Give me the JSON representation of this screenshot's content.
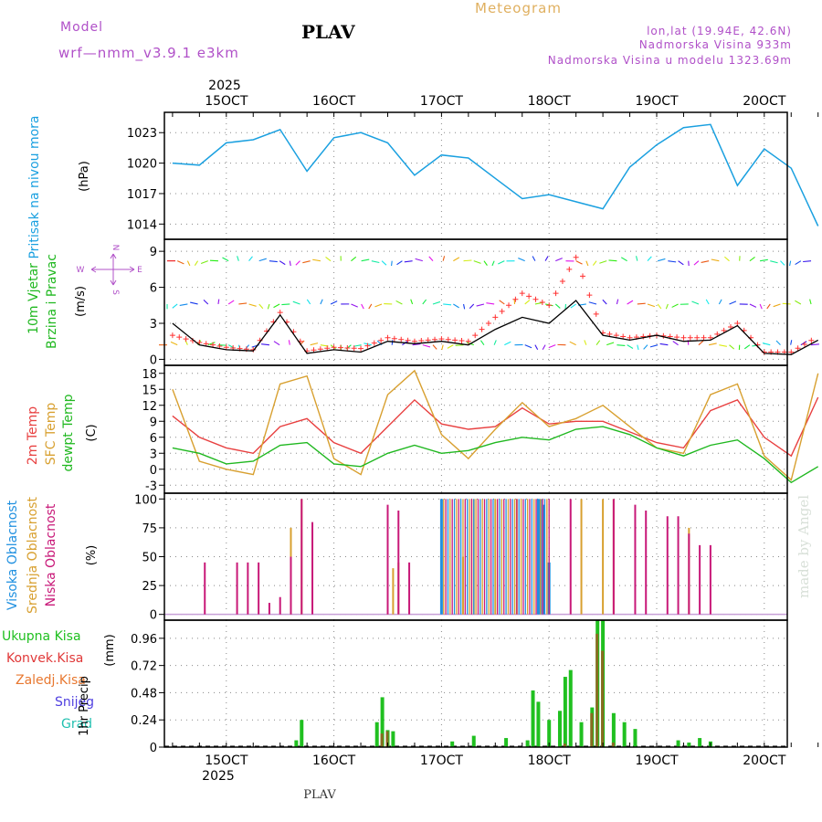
{
  "header": {
    "model_label": "Model",
    "model_name": "wrf—nmm_v3.9.1 e3km",
    "station": "PLAV",
    "title": "Meteogram",
    "lonlat": "lon,lat (19.94E, 42.6N)",
    "elevation": "Nadmorska Visina 933m",
    "model_elevation": "Nadmorska Visina u modelu 1323.69m",
    "watermark": "made by Angel",
    "footer_station": "PLAV"
  },
  "colors": {
    "pressure": "#1aa0e0",
    "wind_speed": "#000000",
    "gust": "#ff3030",
    "t2m": "#e84040",
    "sfc": "#d8a030",
    "dew": "#20b820",
    "high_cloud": "#2090e0",
    "mid_cloud": "#d8a030",
    "low_cloud": "#c81878",
    "total_precip": "#20c020",
    "conv_precip": "#e03838",
    "frozen_precip": "#e87830",
    "snow": "#5040e0",
    "graupel": "#20c0b0"
  },
  "time_axis": {
    "year": "2025",
    "dates": [
      "15OCT",
      "16OCT",
      "17OCT",
      "18OCT",
      "19OCT",
      "20OCT"
    ]
  },
  "panel_labels": {
    "pressure": {
      "title": "Pritisak na nivou mora",
      "unit": "(hPa)"
    },
    "wind": {
      "title1": "10m Vjetar",
      "title2": "Brzina i Pravac",
      "unit": "(m/s)",
      "compass_n": "N",
      "compass_s": "S",
      "compass_w": "W",
      "compass_e": "E"
    },
    "temp": {
      "title1": "2m Temp",
      "title2": "SFC Temp",
      "title3": "dewpt Temp",
      "unit": "(C)"
    },
    "cloud": {
      "title1": "Visoka Oblacnost",
      "title2": "Srednja Oblacnost",
      "title3": "Niska Oblacnost",
      "unit": "(%)"
    },
    "precip": {
      "label": "1hr Precip",
      "unit": "(mm)",
      "legend": [
        "Ukupna Kisa",
        "Konvek.Kisa",
        "Zaledj.Kisa",
        "Snijeg",
        "Grad"
      ]
    }
  },
  "chart_data": [
    {
      "type": "line",
      "name": "pressure",
      "title": "Pritisak na nivou mora",
      "ylabel": "(hPa)",
      "x_unit": "day of October 2025",
      "ylim": [
        1012.5,
        1025
      ],
      "yticks": [
        1014,
        1017,
        1020,
        1023
      ],
      "x": [
        14.5,
        14.75,
        15.0,
        15.25,
        15.5,
        15.75,
        16.0,
        16.25,
        16.5,
        16.75,
        17.0,
        17.25,
        17.5,
        17.75,
        18.0,
        18.25,
        18.5,
        18.75,
        19.0,
        19.25,
        19.5,
        19.75,
        20.0,
        20.25,
        20.5
      ],
      "values": [
        1020.0,
        1019.8,
        1022.0,
        1022.3,
        1023.3,
        1019.2,
        1022.5,
        1023.0,
        1022.0,
        1018.8,
        1020.8,
        1020.5,
        1018.5,
        1016.5,
        1016.9,
        1016.2,
        1015.5,
        1019.6,
        1021.8,
        1023.5,
        1023.8,
        1017.8,
        1021.4,
        1019.5,
        1013.8
      ]
    },
    {
      "type": "line",
      "name": "wind",
      "title": "10m Vjetar Brzina i Pravac",
      "ylabel": "(m/s)",
      "ylim": [
        -0.5,
        10.0
      ],
      "yticks": [
        0,
        3,
        6,
        9
      ],
      "x": [
        14.5,
        14.75,
        15.0,
        15.25,
        15.5,
        15.75,
        16.0,
        16.25,
        16.5,
        16.75,
        17.0,
        17.25,
        17.5,
        17.75,
        18.0,
        18.25,
        18.5,
        18.75,
        19.0,
        19.25,
        19.5,
        19.75,
        20.0,
        20.25,
        20.5
      ],
      "series": [
        {
          "name": "wind_speed",
          "values": [
            3.0,
            1.2,
            0.8,
            0.7,
            3.7,
            0.5,
            0.8,
            0.6,
            1.5,
            1.3,
            1.5,
            1.2,
            2.5,
            3.5,
            3.0,
            4.9,
            2.0,
            1.6,
            2.0,
            1.5,
            1.6,
            2.8,
            0.5,
            0.4,
            1.6
          ]
        },
        {
          "name": "gust",
          "values": [
            2.0,
            1.4,
            1.0,
            0.8,
            3.9,
            0.7,
            1.0,
            0.9,
            1.8,
            1.5,
            1.7,
            1.5,
            3.5,
            5.5,
            4.5,
            8.5,
            2.2,
            1.8,
            2.0,
            1.8,
            1.8,
            3.0,
            0.6,
            0.6,
            1.9
          ]
        }
      ]
    },
    {
      "type": "line",
      "name": "temperature",
      "ylabel": "(C)",
      "ylim": [
        -4.5,
        19.5
      ],
      "yticks": [
        -3,
        0,
        3,
        6,
        9,
        12,
        15,
        18
      ],
      "x": [
        14.5,
        14.75,
        15.0,
        15.25,
        15.5,
        15.75,
        16.0,
        16.25,
        16.5,
        16.75,
        17.0,
        17.25,
        17.5,
        17.75,
        18.0,
        18.25,
        18.5,
        18.75,
        19.0,
        19.25,
        19.5,
        19.75,
        20.0,
        20.25,
        20.5
      ],
      "series": [
        {
          "name": "2m Temp",
          "values": [
            10.0,
            6.0,
            4.0,
            3.0,
            8.0,
            9.5,
            5.0,
            3.0,
            8.0,
            13.0,
            8.5,
            7.5,
            8.0,
            11.5,
            8.5,
            9.0,
            9.0,
            7.0,
            5.0,
            4.0,
            11.0,
            13.0,
            6.0,
            2.5,
            13.5
          ]
        },
        {
          "name": "SFC Temp",
          "values": [
            15.0,
            1.5,
            0.0,
            -1.0,
            16.0,
            17.5,
            2.0,
            -1.0,
            14.0,
            18.5,
            6.5,
            2.0,
            7.5,
            12.5,
            8.0,
            9.5,
            12.0,
            8.0,
            4.0,
            3.0,
            14.0,
            16.0,
            2.5,
            -2.0,
            18.0
          ]
        },
        {
          "name": "dewpt Temp",
          "values": [
            4.0,
            3.0,
            1.0,
            1.5,
            4.5,
            5.0,
            1.0,
            0.5,
            3.0,
            4.5,
            3.0,
            3.5,
            5.0,
            6.0,
            5.5,
            7.5,
            8.0,
            6.5,
            4.0,
            2.5,
            4.5,
            5.5,
            2.0,
            -2.5,
            0.5
          ]
        }
      ]
    },
    {
      "type": "bar",
      "name": "cloud_cover",
      "ylabel": "(%)",
      "ylim": [
        -5,
        105
      ],
      "yticks": [
        0,
        25,
        50,
        75,
        100
      ],
      "series": [
        {
          "name": "Visoka Oblacnost",
          "points": [
            [
              17.0,
              100
            ],
            [
              17.9,
              100
            ],
            [
              17.92,
              100
            ],
            [
              17.95,
              95
            ],
            [
              18.0,
              45
            ]
          ]
        },
        {
          "name": "Srednja Oblacnost",
          "points": [
            [
              15.6,
              75
            ],
            [
              15.7,
              100
            ],
            [
              16.5,
              45
            ],
            [
              16.55,
              40
            ],
            [
              16.6,
              45
            ],
            [
              17.2,
              50
            ],
            [
              17.3,
              100
            ],
            [
              17.5,
              100
            ],
            [
              17.7,
              100
            ],
            [
              18.3,
              100
            ],
            [
              18.5,
              100
            ],
            [
              18.6,
              100
            ],
            [
              19.3,
              75
            ]
          ]
        },
        {
          "name": "Niska Oblacnost",
          "points": [
            [
              14.8,
              45
            ],
            [
              15.1,
              45
            ],
            [
              15.2,
              45
            ],
            [
              15.3,
              45
            ],
            [
              15.4,
              10
            ],
            [
              15.5,
              15
            ],
            [
              15.6,
              50
            ],
            [
              15.7,
              100
            ],
            [
              15.8,
              80
            ],
            [
              16.5,
              95
            ],
            [
              16.6,
              90
            ],
            [
              16.7,
              45
            ],
            [
              18.2,
              100
            ],
            [
              18.6,
              100
            ],
            [
              18.8,
              95
            ],
            [
              18.9,
              90
            ],
            [
              19.1,
              85
            ],
            [
              19.2,
              85
            ],
            [
              19.3,
              70
            ],
            [
              19.4,
              60
            ],
            [
              19.5,
              60
            ]
          ]
        }
      ]
    },
    {
      "type": "bar",
      "name": "precipitation",
      "ylabel": "1hr Precip (mm)",
      "ylim": [
        0,
        1.12
      ],
      "yticks": [
        0,
        0.24,
        0.48,
        0.72,
        0.96
      ],
      "series": [
        {
          "name": "Ukupna Kisa",
          "points": [
            [
              15.65,
              0.06
            ],
            [
              15.7,
              0.24
            ],
            [
              16.4,
              0.22
            ],
            [
              16.45,
              0.44
            ],
            [
              16.5,
              0.15
            ],
            [
              16.55,
              0.14
            ],
            [
              17.1,
              0.05
            ],
            [
              17.3,
              0.1
            ],
            [
              17.6,
              0.08
            ],
            [
              17.8,
              0.06
            ],
            [
              17.85,
              0.5
            ],
            [
              17.9,
              0.4
            ],
            [
              18.0,
              0.24
            ],
            [
              18.1,
              0.32
            ],
            [
              18.15,
              0.62
            ],
            [
              18.2,
              0.68
            ],
            [
              18.3,
              0.22
            ],
            [
              18.4,
              0.35
            ],
            [
              18.45,
              1.12
            ],
            [
              18.5,
              1.12
            ],
            [
              18.6,
              0.3
            ],
            [
              18.7,
              0.22
            ],
            [
              18.8,
              0.16
            ],
            [
              19.2,
              0.06
            ],
            [
              19.3,
              0.04
            ],
            [
              19.4,
              0.08
            ],
            [
              19.5,
              0.05
            ]
          ]
        },
        {
          "name": "Konvek.Kisa",
          "points": [
            [
              16.45,
              0.12
            ],
            [
              16.5,
              0.14
            ],
            [
              18.15,
              0.03
            ],
            [
              18.4,
              0.3
            ],
            [
              18.45,
              1.0
            ],
            [
              18.5,
              0.85
            ],
            [
              18.6,
              0.04
            ]
          ]
        },
        {
          "name": "Zaledj.Kisa",
          "points": []
        },
        {
          "name": "Snijeg",
          "points": []
        },
        {
          "name": "Grad",
          "points": []
        }
      ]
    }
  ]
}
